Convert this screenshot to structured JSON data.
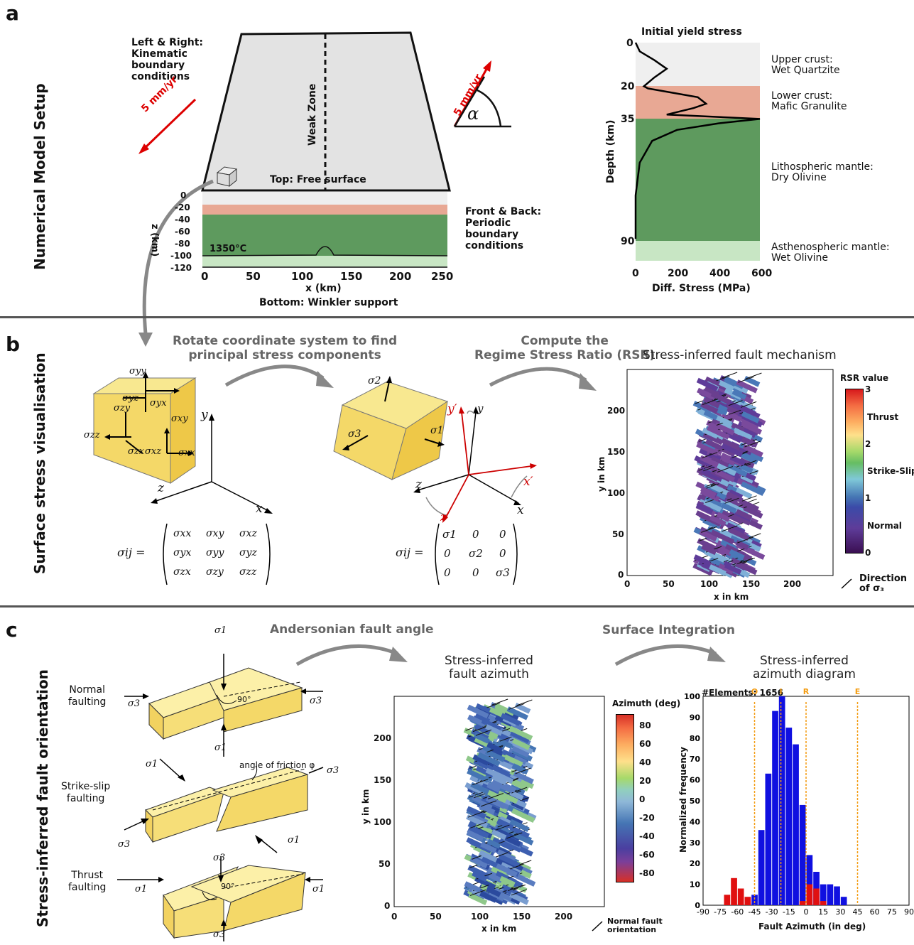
{
  "panel_a": {
    "letter": "a",
    "side_title": "Numerical Model Setup",
    "left_right_label": "Left & Right:\nKinematic\nboundary\nconditions",
    "velocity_left": "5 mm/yr",
    "velocity_right": "5 mm/yr",
    "alpha": "α",
    "weak_zone": "Weak Zone",
    "top_label": "Top: Free surface",
    "front_back_label": "Front & Back:\nPeriodic\nboundary\nconditions",
    "isotherm": "1350°C",
    "z_label": "z (km)",
    "z_ticks": [
      "0",
      "-20",
      "-40",
      "-60",
      "-80",
      "-100",
      "-120"
    ],
    "x_label": "x (km)",
    "x_ticks": [
      "0",
      "50",
      "100",
      "150",
      "200",
      "250"
    ],
    "bottom_label": "Bottom: Winkler support",
    "yield_title": "Initial yield stress",
    "yield_ylabel": "Depth (km)",
    "yield_xlabel": "Diff. Stress (MPa)",
    "yield_depth_ticks": [
      "0",
      "20",
      "35",
      "90"
    ],
    "yield_stress_ticks": [
      "0",
      "200",
      "400",
      "600"
    ],
    "layers": [
      {
        "name": "Upper crust:\nWet Quartzite",
        "color": "#efefef"
      },
      {
        "name": "Lower crust:\nMafic Granulite",
        "color": "#e8a894"
      },
      {
        "name": "Lithospheric mantle:\nDry Olivine",
        "color": "#5e9a5e"
      },
      {
        "name": "Asthenospheric mantle:\nWet Olivine",
        "color": "#c8e6c4"
      }
    ]
  },
  "panel_b": {
    "letter": "b",
    "side_title": "Surface stress visualisation",
    "step1": "Rotate coordinate system to find\nprincipal stress components",
    "step2": "Compute the\nRegime Stress Ratio (RSR)",
    "plot_title": "Stress-inferred fault mechanism",
    "xlabel": "x in km",
    "ylabel": "y in km",
    "x_ticks": [
      "0",
      "50",
      "100",
      "150",
      "200"
    ],
    "y_ticks": [
      "0",
      "50",
      "100",
      "150",
      "200"
    ],
    "cbar_title": "RSR value",
    "cbar_labels": [
      "3",
      "Thrust",
      "2",
      "Strike-Slip",
      "1",
      "Normal",
      "0"
    ],
    "direction_label": "Direction\nof σ₃",
    "sigma_ij": "σij =",
    "tensor_general": [
      [
        "σxx",
        "σxy",
        "σxz"
      ],
      [
        "σyx",
        "σyy",
        "σyz"
      ],
      [
        "σzx",
        "σzy",
        "σzz"
      ]
    ],
    "tensor_principal": [
      [
        "σ1",
        "0",
        "0"
      ],
      [
        "0",
        "σ2",
        "0"
      ],
      [
        "0",
        "0",
        "σ3"
      ]
    ],
    "cube1_labels": [
      "σyy",
      "σzy",
      "σyz",
      "σyx",
      "σxy",
      "σzz",
      "σzx",
      "σxz",
      "σxx"
    ],
    "cube2_labels": [
      "σ2",
      "σ3",
      "σ1"
    ],
    "axes1": [
      "y",
      "z",
      "x"
    ],
    "axes2": [
      "y",
      "y′",
      "z",
      "z′",
      "x",
      "x′"
    ]
  },
  "panel_c": {
    "letter": "c",
    "side_title": "Stress-inferred fault orientation",
    "step1": "Andersonian fault angle",
    "step2": "Surface Integration",
    "normal": "Normal\nfaulting",
    "strike": "Strike-slip\nfaulting",
    "thrust": "Thrust\nfaulting",
    "friction": "angle of friction φ",
    "deg90": "90°",
    "s1": "σ1",
    "s3": "σ3",
    "map_title": "Stress-inferred\nfault azimuth",
    "xlabel": "x in km",
    "ylabel": "y in km",
    "x_ticks": [
      "0",
      "50",
      "100",
      "150",
      "200"
    ],
    "y_ticks": [
      "0",
      "50",
      "100",
      "150",
      "200"
    ],
    "cbar_title": "Azimuth (deg)",
    "cbar_ticks": [
      "80",
      "60",
      "40",
      "20",
      "0",
      "-20",
      "-40",
      "-60",
      "-80"
    ],
    "normal_orient": "Normal fault\norientation",
    "hist_title": "Stress-inferred\nazimuth diagram",
    "elements": "#Elements: 1656",
    "hist_ylabel": "Normalized frequency",
    "hist_xlabel": "Fault Azimuth (in deg)",
    "markers": [
      "O",
      "I",
      "R",
      "E"
    ]
  },
  "chart_data": [
    {
      "type": "line",
      "title": "Initial yield stress",
      "xlabel": "Diff. Stress (MPa)",
      "ylabel": "Depth (km)",
      "xlim": [
        0,
        600
      ],
      "ylim": [
        0,
        100
      ],
      "y_inverted": true,
      "x": [
        0,
        20,
        90,
        150,
        90,
        40,
        60,
        180,
        300,
        340,
        280,
        150,
        600,
        400,
        200,
        80,
        20,
        0,
        0
      ],
      "y": [
        0,
        4,
        8,
        12,
        16,
        20,
        21,
        23,
        25,
        28,
        30,
        33,
        35,
        37,
        40,
        45,
        55,
        70,
        90
      ]
    },
    {
      "type": "bar",
      "title": "Stress-inferred azimuth diagram",
      "xlabel": "Fault Azimuth (in deg)",
      "ylabel": "Normalized frequency",
      "xlim": [
        -90,
        90
      ],
      "ylim": [
        0,
        100
      ],
      "x_ticks": [
        -90,
        -75,
        -60,
        -45,
        -30,
        -15,
        0,
        15,
        30,
        45,
        60,
        75,
        90
      ],
      "y_ticks": [
        0,
        10,
        20,
        30,
        40,
        50,
        60,
        70,
        80,
        90,
        100
      ],
      "vlines": [
        {
          "label": "O",
          "x": -45
        },
        {
          "label": "I",
          "x": -22
        },
        {
          "label": "R",
          "x": 0
        },
        {
          "label": "E",
          "x": 45
        }
      ],
      "series": [
        {
          "color": "#1010e0",
          "categories": [
            -51,
            -45,
            -39,
            -33,
            -27,
            -21,
            -15,
            -9,
            -3,
            3,
            9,
            15,
            21,
            27,
            33
          ],
          "values": [
            1,
            5,
            36,
            63,
            93,
            100,
            85,
            77,
            48,
            24,
            16,
            10,
            10,
            9,
            4
          ]
        },
        {
          "color": "#e01010",
          "categories": [
            -69,
            -63,
            -57,
            -51,
            -3,
            3,
            9,
            15
          ],
          "values": [
            5,
            13,
            8,
            4,
            2,
            10,
            8,
            2
          ]
        }
      ]
    }
  ]
}
